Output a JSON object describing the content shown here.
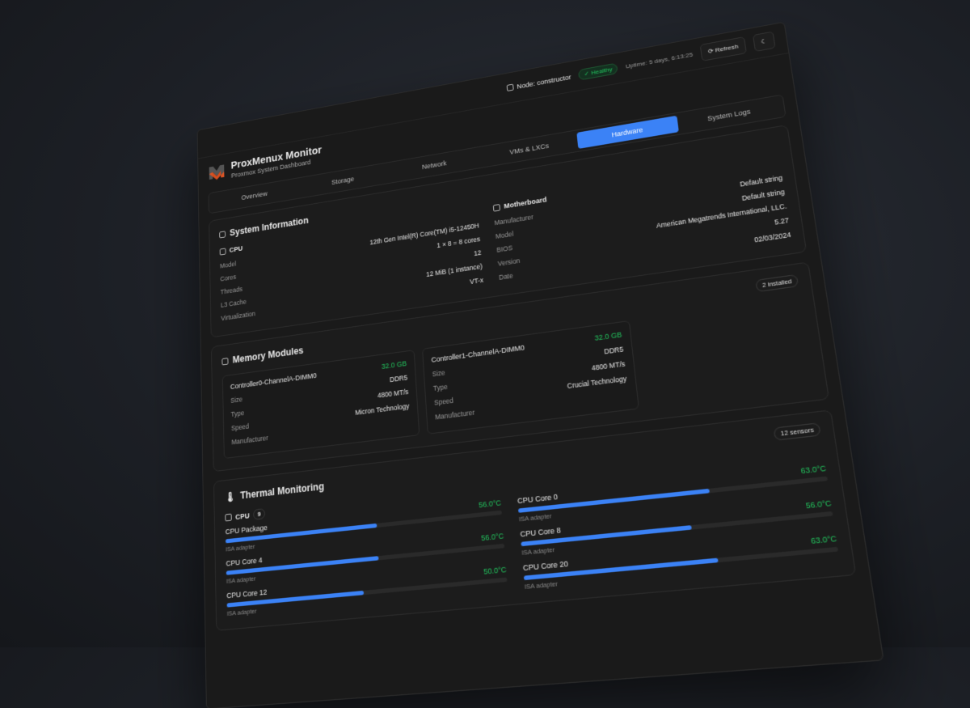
{
  "topbar": {
    "node": "Node: constructor",
    "status": "Healthy",
    "uptime": "Uptime: 5 days, 6:13:25",
    "refresh": "Refresh"
  },
  "header": {
    "title": "ProxMenux Monitor",
    "subtitle": "Proxmox System Dashboard"
  },
  "tabs": [
    "Overview",
    "Storage",
    "Network",
    "VMs & LXCs",
    "Hardware",
    "System Logs"
  ],
  "active_tab": "Hardware",
  "colors": {
    "accent": "#3b82f6",
    "ok": "#22c55e",
    "logo_orange": "#e8531f"
  },
  "system": {
    "title": "System Information",
    "cpu": {
      "label": "CPU",
      "rows": [
        [
          "Model",
          "12th Gen Intel(R) Core(TM) i5-12450H"
        ],
        [
          "Cores",
          "1 × 8 = 8 cores"
        ],
        [
          "Threads",
          "12"
        ],
        [
          "L3 Cache",
          "12 MiB (1 instance)"
        ],
        [
          "Virtualization",
          "VT-x"
        ]
      ]
    },
    "board": {
      "label": "Motherboard",
      "rows": [
        [
          "Manufacturer",
          "Default string"
        ],
        [
          "Model",
          "Default string"
        ],
        [
          "BIOS",
          "American Megatrends International, LLC."
        ],
        [
          "Version",
          "5.27"
        ],
        [
          "Date",
          "02/03/2024"
        ]
      ]
    }
  },
  "memory": {
    "title": "Memory Modules",
    "count": "2 installed",
    "modules": [
      {
        "name": "Controller0-ChannelA-DIMM0",
        "size": "32.0 GB",
        "rows": [
          [
            "Size",
            "DDR5"
          ],
          [
            "Type",
            "4800 MT/s"
          ],
          [
            "Speed",
            "Micron Technology"
          ],
          [
            "Manufacturer",
            ""
          ]
        ]
      },
      {
        "name": "Controller1-ChannelA-DIMM0",
        "size": "32.0 GB",
        "rows": [
          [
            "Size",
            "DDR5"
          ],
          [
            "Type",
            "4800 MT/s"
          ],
          [
            "Speed",
            "Crucial Technology"
          ],
          [
            "Manufacturer",
            ""
          ]
        ]
      }
    ]
  },
  "thermal": {
    "title": "Thermal Monitoring",
    "count": "12 sensors",
    "group": "CPU",
    "group_count": "9",
    "sensors": [
      {
        "name": "CPU Package",
        "temp": "56.0°C",
        "value": 56,
        "source": "ISA adapter"
      },
      {
        "name": "CPU Core 0",
        "temp": "63.0°C",
        "value": 63,
        "source": "ISA adapter"
      },
      {
        "name": "CPU Core 4",
        "temp": "56.0°C",
        "value": 56,
        "source": "ISA adapter"
      },
      {
        "name": "CPU Core 8",
        "temp": "56.0°C",
        "value": 56,
        "source": "ISA adapter"
      },
      {
        "name": "CPU Core 12",
        "temp": "50.0°C",
        "value": 50,
        "source": "ISA adapter"
      },
      {
        "name": "CPU Core 20",
        "temp": "63.0°C",
        "value": 63,
        "source": "ISA adapter"
      }
    ]
  }
}
